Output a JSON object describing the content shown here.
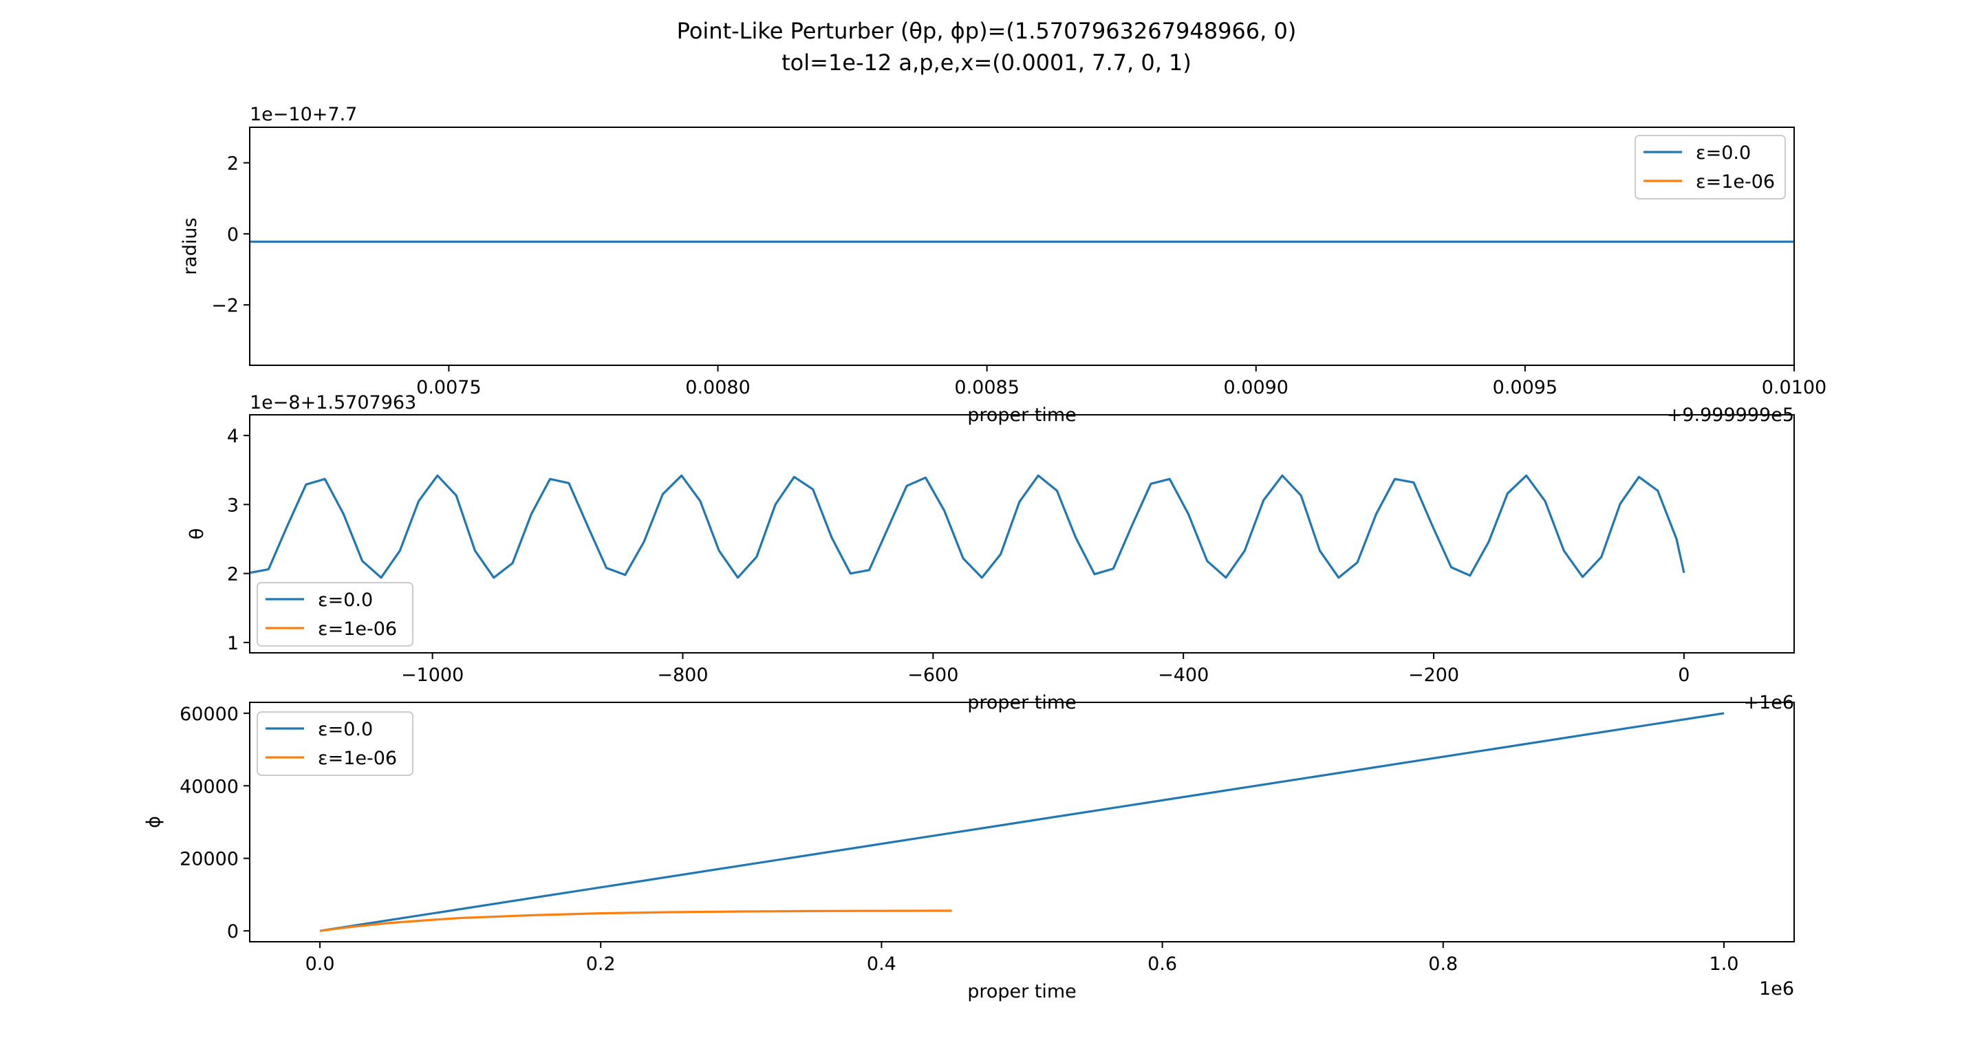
{
  "title_line1": "Point-Like Perturber (θp, ϕp)=(1.5707963267948966, 0)",
  "title_line2": "tol=1e-12 a,p,e,x=(0.0001, 7.7, 0, 1)",
  "colors": {
    "series0": "#1f77b4",
    "series1": "#ff7f0e",
    "axes": "#000000",
    "legend_border": "#cccccc"
  },
  "chart_data": [
    {
      "type": "line",
      "ylabel": "radius",
      "xlabel": "proper time",
      "x_offset_label": "+9.999999e5",
      "y_offset_label": "1e−10+7.7",
      "xlim": [
        0.00713,
        0.01
      ],
      "ylim": [
        -3.7,
        3.0
      ],
      "xticks": [
        0.0075,
        0.008,
        0.0085,
        0.009,
        0.0095,
        0.01
      ],
      "xtick_labels": [
        "0.0075",
        "0.0080",
        "0.0085",
        "0.0090",
        "0.0095",
        "0.0100"
      ],
      "yticks": [
        -2,
        0,
        2
      ],
      "ytick_labels": [
        "−2",
        "0",
        "2"
      ],
      "legend_placement": "upper-right",
      "series": [
        {
          "name": "ε=0.0",
          "x": [
            0.00713,
            0.01
          ],
          "y": [
            -0.22,
            -0.22
          ]
        },
        {
          "name": "ε=1e-06",
          "x": [],
          "y": []
        }
      ]
    },
    {
      "type": "line",
      "ylabel": "θ",
      "xlabel": "proper time",
      "x_offset_label": "+1e6",
      "y_offset_label": "1e−8+1.5707963",
      "xlim": [
        -1146,
        88
      ],
      "ylim": [
        0.85,
        4.3
      ],
      "xticks": [
        -1000,
        -800,
        -600,
        -400,
        -200,
        0
      ],
      "xtick_labels": [
        "−1000",
        "−800",
        "−600",
        "−400",
        "−200",
        "0"
      ],
      "yticks": [
        1,
        2,
        3,
        4
      ],
      "ytick_labels": [
        "1",
        "2",
        "3",
        "4"
      ],
      "legend_placement": "lower-left",
      "series": [
        {
          "name": "ε=0.0",
          "x": [
            -1146,
            -1131,
            -1116,
            -1101,
            -1086,
            -1071,
            -1056,
            -1041,
            -1026,
            -1011,
            -996,
            -981,
            -966,
            -951,
            -936,
            -921,
            -906,
            -891,
            -876,
            -861,
            -846,
            -831,
            -816,
            -801,
            -786,
            -771,
            -756,
            -741,
            -726,
            -711,
            -696,
            -681,
            -666,
            -651,
            -636,
            -621,
            -606,
            -591,
            -576,
            -561,
            -546,
            -531,
            -516,
            -501,
            -486,
            -471,
            -456,
            -441,
            -426,
            -411,
            -396,
            -381,
            -366,
            -351,
            -336,
            -321,
            -306,
            -291,
            -276,
            -261,
            -246,
            -231,
            -216,
            -201,
            -186,
            -171,
            -156,
            -141,
            -126,
            -111,
            -96,
            -81,
            -66,
            -51,
            -36,
            -21,
            -6,
            0
          ],
          "y": [
            2.01,
            2.06,
            2.69,
            3.29,
            3.37,
            2.86,
            2.18,
            1.94,
            2.33,
            3.05,
            3.42,
            3.13,
            2.33,
            1.94,
            2.15,
            2.86,
            3.37,
            3.31,
            2.69,
            2.08,
            1.98,
            2.46,
            3.15,
            3.42,
            3.05,
            2.33,
            1.94,
            2.24,
            3.0,
            3.4,
            3.22,
            2.52,
            2.0,
            2.05,
            2.66,
            3.27,
            3.39,
            2.91,
            2.22,
            1.94,
            2.28,
            3.04,
            3.42,
            3.2,
            2.52,
            1.99,
            2.07,
            2.7,
            3.3,
            3.37,
            2.86,
            2.18,
            1.94,
            2.33,
            3.06,
            3.42,
            3.13,
            2.33,
            1.94,
            2.16,
            2.86,
            3.37,
            3.32,
            2.69,
            2.09,
            1.97,
            2.46,
            3.16,
            3.42,
            3.05,
            2.33,
            1.95,
            2.24,
            3.01,
            3.4,
            3.2,
            2.5,
            2.01
          ]
        },
        {
          "name": "ε=1e-06",
          "x": [],
          "y": []
        }
      ]
    },
    {
      "type": "line",
      "ylabel": "ϕ",
      "xlabel": "proper time",
      "x_offset_label": "1e6",
      "xlim": [
        -0.05,
        1.05
      ],
      "ylim": [
        -3000,
        63000
      ],
      "xticks": [
        0.0,
        0.2,
        0.4,
        0.6,
        0.8,
        1.0
      ],
      "xtick_labels": [
        "0.0",
        "0.2",
        "0.4",
        "0.6",
        "0.8",
        "1.0"
      ],
      "yticks": [
        0,
        20000,
        40000,
        60000
      ],
      "ytick_labels": [
        "0",
        "20000",
        "40000",
        "60000"
      ],
      "legend_placement": "upper-left",
      "series": [
        {
          "name": "ε=0.0",
          "x": [
            0.0,
            1.0
          ],
          "y": [
            0,
            60000
          ]
        },
        {
          "name": "ε=1e-06",
          "x": [
            0.0,
            0.02,
            0.05,
            0.08,
            0.1,
            0.15,
            0.2,
            0.25,
            0.3,
            0.35,
            0.4,
            0.45
          ],
          "y": [
            0,
            1000,
            2200,
            3050,
            3550,
            4300,
            4850,
            5150,
            5350,
            5450,
            5520,
            5560
          ]
        }
      ]
    }
  ]
}
